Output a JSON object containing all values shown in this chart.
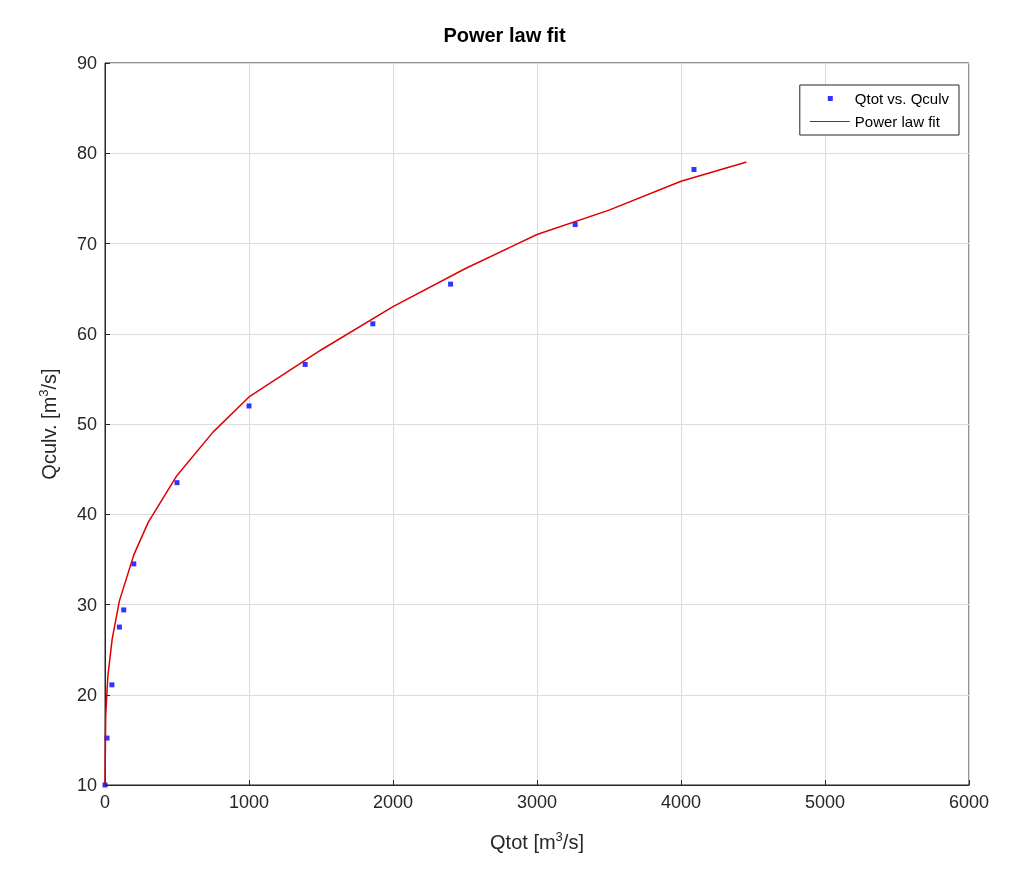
{
  "chart_data": {
    "type": "scatter",
    "title": "Power law fit",
    "xlabel": "Qtot [m$^{3}$/s]",
    "ylabel": "Qculv. [m$^{3}$/s]",
    "xlim": [
      0,
      6000
    ],
    "xticks": [
      0,
      1000,
      2000,
      3000,
      4000,
      5000,
      6000
    ],
    "ylim": [
      10,
      90
    ],
    "yticks": [
      10,
      20,
      30,
      40,
      50,
      60,
      70,
      80,
      90
    ],
    "grid": true,
    "legend": "top right",
    "series": [
      {
        "name": "Qtot vs. Qculv",
        "marker": "square",
        "color": "#0000ff",
        "x": [
          0,
          14,
          48,
          100,
          130,
          200,
          500,
          1000,
          1390,
          1860,
          2400,
          3265,
          4090
        ],
        "values": [
          10,
          15.2,
          21.1,
          27.5,
          29.4,
          34.5,
          43.5,
          52,
          56.6,
          61.1,
          65.5,
          72.1,
          78.2
        ]
      },
      {
        "name": "Power law fit",
        "type": "line",
        "marker": "none",
        "line_style": "solid",
        "color": "#e00000",
        "x": [
          0,
          5,
          20,
          50,
          100,
          200,
          300,
          500,
          750,
          1000,
          1500,
          2000,
          2500,
          3000,
          3500,
          4000,
          4450
        ],
        "values": [
          10,
          17.7,
          22.1,
          26.2,
          30.4,
          35.5,
          39.1,
          44.3,
          49.1,
          53,
          58.2,
          63,
          67.2,
          71,
          73.7,
          76.9,
          79
        ]
      }
    ]
  }
}
